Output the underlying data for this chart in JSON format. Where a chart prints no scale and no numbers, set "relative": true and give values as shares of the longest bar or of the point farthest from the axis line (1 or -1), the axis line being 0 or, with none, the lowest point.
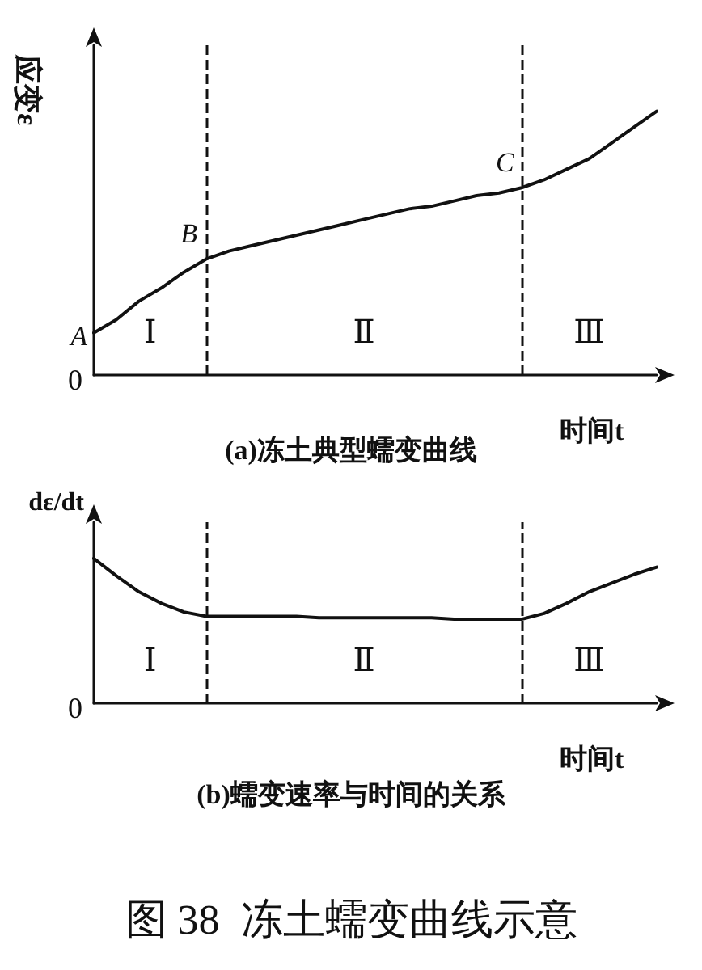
{
  "chart_data": [
    {
      "type": "line",
      "title": "(a)冻土典型蠕变曲线",
      "ylabel": "应变ε",
      "xlabel": "时间t",
      "relative": true,
      "marker": "none",
      "line_style": "solid",
      "color": "#111111",
      "categories": [
        null,
        null,
        null,
        null,
        null,
        null,
        null,
        null,
        null,
        null,
        null,
        null,
        null,
        null,
        null,
        null,
        null,
        null,
        null,
        null,
        null,
        null,
        null,
        null,
        null,
        null
      ],
      "values": [
        0.16,
        0.21,
        0.28,
        0.33,
        0.39,
        0.44,
        0.47,
        0.49,
        0.51,
        0.53,
        0.55,
        0.57,
        0.59,
        0.61,
        0.63,
        0.64,
        0.66,
        0.68,
        0.69,
        0.71,
        0.74,
        0.78,
        0.82,
        0.88,
        0.94,
        1.0
      ],
      "annotations": [
        "0",
        "Ⅰ",
        "Ⅱ",
        "Ⅲ",
        "A",
        {
          "text": "B",
          "y": 0.44
        },
        {
          "text": "C",
          "y": 0.71
        }
      ]
    },
    {
      "type": "line",
      "title": "(b)蠕变速率与时间的关系",
      "ylabel": "dε/dt",
      "xlabel": "时间t",
      "relative": true,
      "marker": "none",
      "line_style": "solid",
      "color": "#111111",
      "categories": [
        null,
        null,
        null,
        null,
        null,
        null,
        null,
        null,
        null,
        null,
        null,
        null,
        null,
        null,
        null,
        null,
        null,
        null,
        null,
        null,
        null,
        null,
        null,
        null,
        null,
        null
      ],
      "values": [
        1.0,
        0.88,
        0.77,
        0.69,
        0.63,
        0.6,
        0.6,
        0.6,
        0.6,
        0.6,
        0.59,
        0.59,
        0.59,
        0.59,
        0.59,
        0.59,
        0.58,
        0.58,
        0.58,
        0.58,
        0.62,
        0.69,
        0.77,
        0.83,
        0.89,
        0.94
      ],
      "annotations": [
        "0",
        "Ⅰ",
        "Ⅱ",
        "Ⅲ",
        "图 38  冻土蠕变曲线示意"
      ]
    }
  ]
}
